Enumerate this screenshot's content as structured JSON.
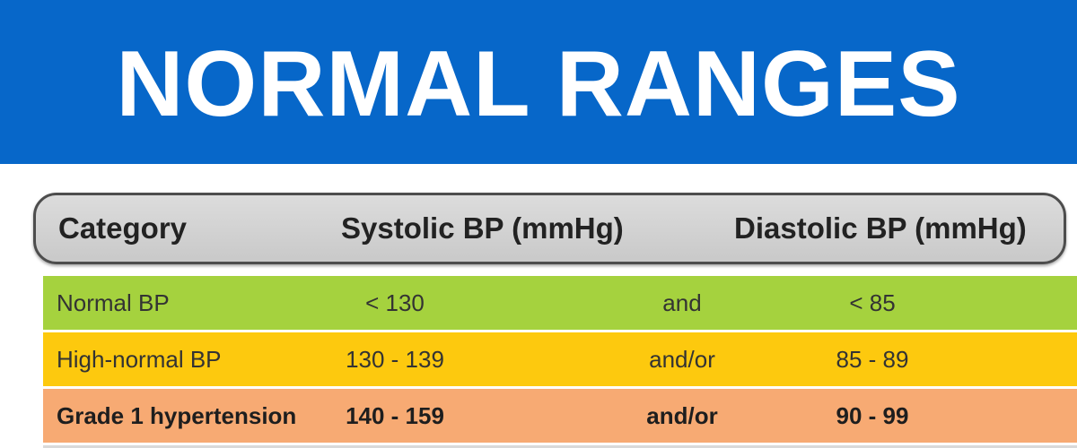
{
  "title": "NORMAL RANGES",
  "colors": {
    "banner": "#0767c9",
    "header": "#d3d3d3",
    "normal": "#a5d23e",
    "high_normal": "#fdc90e",
    "grade1": "#f7aa73"
  },
  "table": {
    "headers": {
      "category": "Category",
      "systolic": "Systolic BP (mmHg)",
      "diastolic": "Diastolic BP (mmHg)"
    },
    "rows": [
      {
        "category": "Normal BP",
        "systolic": "< 130",
        "conjunction": "and",
        "diastolic": "< 85"
      },
      {
        "category": "High-normal BP",
        "systolic": "130 - 139",
        "conjunction": "and/or",
        "diastolic": "85 - 89"
      },
      {
        "category": "Grade 1 hypertension",
        "systolic": "140 - 159",
        "conjunction": "and/or",
        "diastolic": "90 - 99"
      }
    ]
  }
}
